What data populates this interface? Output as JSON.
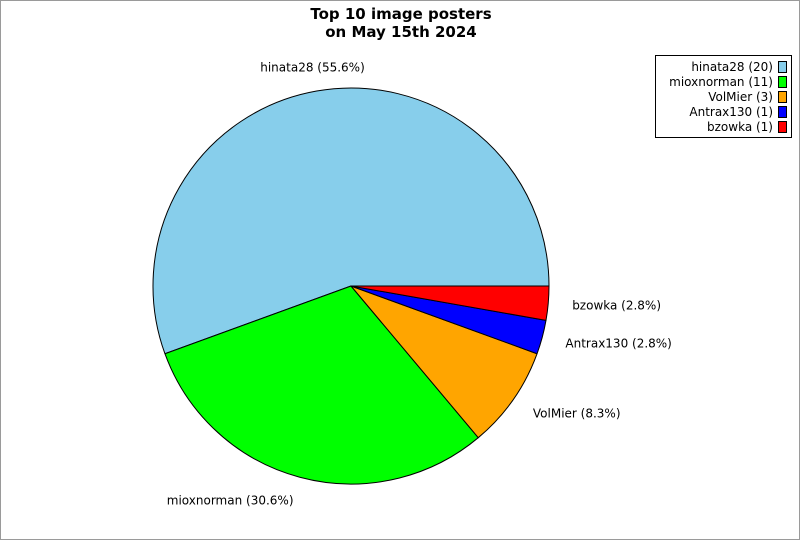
{
  "chart_data": {
    "type": "pie",
    "title": [
      "Top 10 image posters",
      "on May 15th 2024"
    ],
    "slices": [
      {
        "name": "hinata28",
        "count": 20,
        "percent": 55.6,
        "color": "#87ceeb"
      },
      {
        "name": "mioxnorman",
        "count": 11,
        "percent": 30.6,
        "color": "#00ff00"
      },
      {
        "name": "VolMier",
        "count": 3,
        "percent": 8.3,
        "color": "#ffa500"
      },
      {
        "name": "Antrax130",
        "count": 1,
        "percent": 2.8,
        "color": "#0000ff"
      },
      {
        "name": "bzowka",
        "count": 1,
        "percent": 2.8,
        "color": "#ff0000"
      }
    ],
    "slice_labels": [
      "hinata28 (55.6%)",
      "mioxnorman (30.6%)",
      "VolMier (8.3%)",
      "Antrax130 (2.8%)",
      "bzowka (2.8%)"
    ],
    "legend": {
      "position": "top-right",
      "entries": [
        "hinata28 (20)",
        "mioxnorman (11)",
        "VolMier (3)",
        "Antrax130 (1)",
        "bzowka (1)"
      ]
    }
  }
}
